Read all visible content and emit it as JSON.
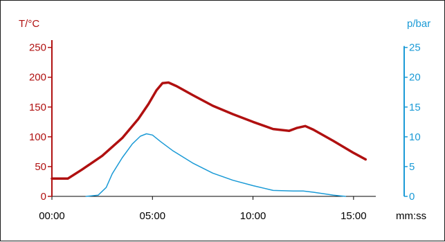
{
  "chart_data": {
    "type": "line",
    "x_unit_label": "mm:ss",
    "x_ticks": [
      "00:00",
      "05:00",
      "10:00",
      "15:00"
    ],
    "x_tick_values": [
      0,
      5,
      10,
      15
    ],
    "xlim": [
      0,
      15.9
    ],
    "y_left": {
      "label": "T/°C",
      "color": "#b01010",
      "ticks": [
        "0",
        "50",
        "100",
        "150",
        "200",
        "250"
      ],
      "tick_values": [
        0,
        50,
        100,
        150,
        200,
        250
      ],
      "ylim": [
        0,
        260
      ]
    },
    "y_right": {
      "label": "p/bar",
      "color": "#1a9ad6",
      "ticks": [
        "0",
        "5",
        "10",
        "15",
        "20",
        "25"
      ],
      "tick_values": [
        0,
        5,
        10,
        15,
        20,
        25
      ],
      "ylim": [
        0,
        26
      ]
    },
    "series": [
      {
        "axis": "left",
        "color": "#b01010",
        "x": [
          0,
          0.8,
          1.5,
          2.5,
          3.5,
          4.3,
          4.8,
          5.2,
          5.5,
          5.8,
          6.2,
          7.0,
          8.0,
          9.0,
          10.0,
          11.0,
          11.8,
          12.2,
          12.6,
          13.0,
          14.0,
          15.0,
          15.6
        ],
        "y": [
          30,
          30,
          45,
          68,
          98,
          130,
          155,
          178,
          190,
          191,
          185,
          170,
          152,
          138,
          125,
          113,
          110,
          115,
          118,
          112,
          93,
          73,
          62
        ]
      },
      {
        "axis": "right",
        "color": "#1a9ad6",
        "x": [
          1.7,
          2.3,
          2.7,
          3.0,
          3.5,
          4.0,
          4.4,
          4.7,
          5.0,
          5.4,
          6.0,
          7.0,
          8.0,
          9.0,
          10.0,
          11.0,
          12.0,
          12.5,
          13.0,
          14.0,
          14.6
        ],
        "y": [
          0,
          0.2,
          1.5,
          3.8,
          6.5,
          8.8,
          10.1,
          10.5,
          10.3,
          9.2,
          7.7,
          5.6,
          3.9,
          2.7,
          1.8,
          1.0,
          0.9,
          0.9,
          0.7,
          0.2,
          0
        ]
      }
    ]
  }
}
